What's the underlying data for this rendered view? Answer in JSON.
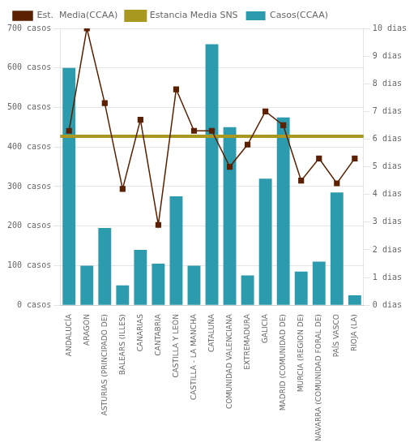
{
  "chart_data": {
    "type": "bar",
    "categories": [
      "ANDALUCÍA",
      "ARAGÓN",
      "ASTURIAS (PRINCIPADO DE)",
      "BALEARS (ILLES)",
      "CANARIAS",
      "CANTABRIA",
      "CASTILLA Y LEÓN",
      "CASTILLA - LA MANCHA",
      "CATALUÑA",
      "COMUNIDAD VALENCIANA",
      "EXTREMADURA",
      "GALICIA",
      "MADRID (COMUNIDAD DE)",
      "MURCIA (REGION DE)",
      "NAVARRA (COMUNIDAD FORAL DE)",
      "PAÍS VASCO",
      "RIOJA (LA)"
    ],
    "series": [
      {
        "name": "Casos(CCAA)",
        "type": "bar",
        "color": "#2B9BAD",
        "values": [
          600,
          100,
          195,
          50,
          140,
          105,
          275,
          100,
          660,
          450,
          75,
          320,
          475,
          85,
          110,
          285,
          25
        ]
      },
      {
        "name": "Est.  Media(CCAA)",
        "type": "line",
        "axis": "y2",
        "color": "#5B2000",
        "marker": "square",
        "line_style": "solid",
        "values": [
          6.3,
          10.0,
          7.3,
          4.2,
          6.7,
          2.9,
          7.8,
          6.3,
          6.3,
          5.0,
          5.8,
          7.0,
          6.5,
          4.5,
          5.3,
          4.4,
          5.3
        ]
      },
      {
        "name": "Estancia Media SNS",
        "type": "hline",
        "axis": "y2",
        "color": "#A89820",
        "line_style": "solid",
        "value": 6.1
      }
    ],
    "ylim": [
      0,
      700
    ],
    "yticks": [
      {
        "value": 0,
        "label": "0 casos"
      },
      {
        "value": 100,
        "label": "100 casos"
      },
      {
        "value": 200,
        "label": "200 casos"
      },
      {
        "value": 300,
        "label": "300 casos"
      },
      {
        "value": 400,
        "label": "400 casos"
      },
      {
        "value": 500,
        "label": "500 casos"
      },
      {
        "value": 600,
        "label": "600 casos"
      },
      {
        "value": 700,
        "label": "700 casos"
      }
    ],
    "y2lim": [
      0,
      10
    ],
    "y2ticks": [
      {
        "value": 0,
        "label": "0 dias"
      },
      {
        "value": 1,
        "label": "1 dias"
      },
      {
        "value": 2,
        "label": "2 dias"
      },
      {
        "value": 3,
        "label": "3 dias"
      },
      {
        "value": 4,
        "label": "4 dias"
      },
      {
        "value": 5,
        "label": "5 dias"
      },
      {
        "value": 6,
        "label": "6 dias"
      },
      {
        "value": 7,
        "label": "7 dias"
      },
      {
        "value": 8,
        "label": "8 dias"
      },
      {
        "value": 9,
        "label": "9 dias"
      },
      {
        "value": 10,
        "label": "10 dias"
      }
    ],
    "grid": true,
    "legend": "top"
  }
}
